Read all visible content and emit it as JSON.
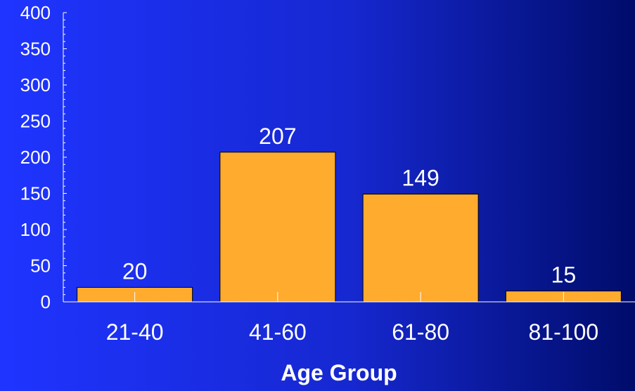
{
  "chart_data": {
    "type": "bar",
    "categories": [
      "21-40",
      "41-60",
      "61-80",
      "81-100"
    ],
    "values": [
      20,
      207,
      149,
      15
    ],
    "data_labels": [
      "20",
      "207",
      "149",
      "15"
    ],
    "title": "",
    "xlabel": "Age Group",
    "ylabel": "",
    "ylim": [
      0,
      400
    ],
    "yticks": [
      "0",
      "50",
      "100",
      "150",
      "200",
      "250",
      "300",
      "350",
      "400"
    ],
    "grid": false,
    "legend": "none"
  },
  "colors": {
    "bar_fill": "#ffab2e",
    "bar_stroke": "#000000",
    "axis": "#ffffff",
    "text": "#ffffff",
    "background_left": "#1f34ff",
    "background_right": "#000c6a"
  }
}
